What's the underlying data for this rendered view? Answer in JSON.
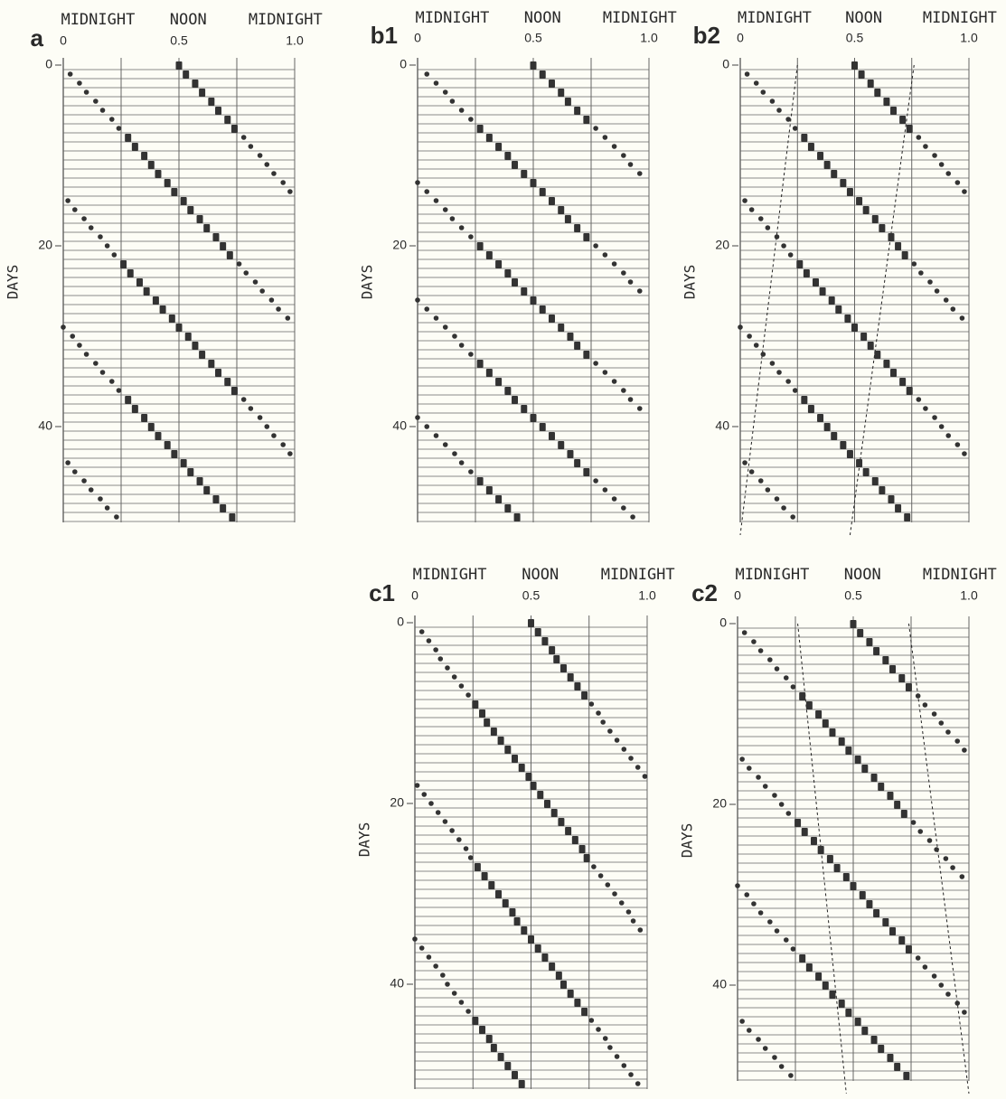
{
  "chart_data": [
    {
      "type": "scatter",
      "panel_label": "a",
      "annotations": [
        "MIDNIGHT",
        "NOON",
        "MIDNIGHT"
      ],
      "ylabel": "DAYS",
      "xlim": [
        0,
        1
      ],
      "xticks": [
        0,
        0.5,
        {
          "value": 1,
          "label": "1.0"
        }
      ],
      "xgrid": [
        0,
        0.25,
        0.5,
        0.75,
        1
      ],
      "ylim": [
        0,
        52
      ],
      "yticks": [
        0,
        20,
        40
      ],
      "days": [
        0,
        1,
        2,
        3,
        4,
        5,
        6,
        7,
        8,
        9,
        10,
        11,
        12,
        13,
        14,
        15,
        16,
        17,
        18,
        19,
        20,
        21,
        22,
        23,
        24,
        25,
        26,
        27,
        28,
        29,
        30,
        31,
        32,
        33,
        34,
        35,
        36,
        37,
        38,
        39,
        40,
        41,
        42,
        43,
        44,
        45,
        46,
        47,
        48,
        49,
        50
      ],
      "series": [
        {
          "color": "#333333",
          "x": [
            0.5,
            0.53,
            0.57,
            0.6,
            0.64,
            0.67,
            0.71,
            0.74,
            0.78,
            0.81,
            0.85,
            0.88,
            0.91,
            0.95,
            0.98,
            0.02,
            0.05,
            0.09,
            0.12,
            0.16,
            0.19,
            0.22,
            0.26,
            0.29,
            0.33,
            0.36,
            0.4,
            0.43,
            0.47,
            0.5,
            0.54,
            0.57,
            0.6,
            0.64,
            0.67,
            0.71,
            0.74,
            0.78,
            0.81,
            0.85,
            0.88,
            0.91,
            0.95,
            0.98,
            0.02,
            0.05,
            0.09,
            0.12,
            0.16,
            0.19,
            0.23
          ]
        },
        {
          "color": "#333333",
          "x": [
            null,
            0.03,
            0.07,
            0.1,
            0.14,
            0.17,
            0.21,
            0.24,
            0.28,
            0.31,
            0.35,
            0.38,
            0.41,
            0.45,
            0.48,
            0.52,
            0.55,
            0.59,
            0.62,
            0.66,
            0.69,
            0.72,
            0.76,
            0.79,
            0.83,
            0.86,
            0.9,
            0.93,
            0.97,
            0,
            0.04,
            0.07,
            0.1,
            0.14,
            0.17,
            0.21,
            0.24,
            0.28,
            0.31,
            0.35,
            0.38,
            0.41,
            0.45,
            0.48,
            0.52,
            0.55,
            0.59,
            0.62,
            0.66,
            0.69,
            0.73
          ]
        }
      ]
    },
    {
      "type": "scatter",
      "panel_label": "b1",
      "annotations": [
        "MIDNIGHT",
        "NOON",
        "MIDNIGHT"
      ],
      "ylabel": "DAYS",
      "xlim": [
        0,
        1
      ],
      "xticks": [
        0,
        0.5,
        {
          "value": 1,
          "label": "1.0"
        }
      ],
      "xgrid": [
        0,
        0.25,
        0.5,
        0.75,
        1
      ],
      "ylim": [
        0,
        52
      ],
      "yticks": [
        0,
        20,
        40
      ],
      "days": [
        0,
        1,
        2,
        3,
        4,
        5,
        6,
        7,
        8,
        9,
        10,
        11,
        12,
        13,
        14,
        15,
        16,
        17,
        18,
        19,
        20,
        21,
        22,
        23,
        24,
        25,
        26,
        27,
        28,
        29,
        30,
        31,
        32,
        33,
        34,
        35,
        36,
        37,
        38,
        39,
        40,
        41,
        42,
        43,
        44,
        45,
        46,
        47,
        48,
        49,
        50
      ],
      "series": [
        {
          "color": "#333333",
          "x": [
            0.5,
            0.54,
            0.58,
            0.62,
            0.65,
            0.69,
            0.73,
            0.77,
            0.81,
            0.85,
            0.89,
            0.92,
            0.96,
            0,
            0.04,
            0.08,
            0.12,
            0.15,
            0.19,
            0.23,
            0.27,
            0.31,
            0.35,
            0.39,
            0.42,
            0.46,
            0.5,
            0.54,
            0.58,
            0.62,
            0.66,
            0.69,
            0.73,
            0.77,
            0.81,
            0.85,
            0.89,
            0.92,
            0.96,
            0,
            0.04,
            0.08,
            0.12,
            0.16,
            0.19,
            0.23,
            0.27,
            0.31,
            0.35,
            0.39,
            0.43
          ]
        },
        {
          "color": "#333333",
          "x": [
            null,
            0.04,
            0.08,
            0.12,
            0.15,
            0.19,
            0.23,
            0.27,
            0.31,
            0.35,
            0.39,
            0.42,
            0.46,
            0.5,
            0.54,
            0.58,
            0.62,
            0.65,
            0.69,
            0.73,
            0.77,
            0.81,
            0.85,
            0.89,
            0.92,
            0.96,
            0,
            0.04,
            0.08,
            0.12,
            0.16,
            0.19,
            0.23,
            0.27,
            0.31,
            0.35,
            0.39,
            0.42,
            0.46,
            0.5,
            0.54,
            0.58,
            0.62,
            0.66,
            0.69,
            0.73,
            0.77,
            0.81,
            0.85,
            0.89,
            0.93
          ]
        }
      ]
    },
    {
      "type": "scatter",
      "panel_label": "b2",
      "annotations": [
        "MIDNIGHT",
        "NOON",
        "MIDNIGHT"
      ],
      "ylabel": "DAYS",
      "xlim": [
        0,
        1
      ],
      "xticks": [
        0,
        0.5,
        {
          "value": 1,
          "label": "1.0"
        }
      ],
      "xgrid": [
        0,
        0.25,
        0.5,
        0.75,
        1
      ],
      "ylim": [
        0,
        52
      ],
      "yticks": [
        0,
        20,
        40
      ],
      "days": [
        0,
        1,
        2,
        3,
        4,
        5,
        6,
        7,
        8,
        9,
        10,
        11,
        12,
        13,
        14,
        15,
        16,
        17,
        18,
        19,
        20,
        21,
        22,
        23,
        24,
        25,
        26,
        27,
        28,
        29,
        30,
        31,
        32,
        33,
        34,
        35,
        36,
        37,
        38,
        39,
        40,
        41,
        42,
        43,
        44,
        45,
        46,
        47,
        48,
        49,
        50
      ],
      "series": [
        {
          "color": "#333333",
          "x": [
            0.5,
            0.53,
            0.57,
            0.6,
            0.64,
            0.67,
            0.71,
            0.74,
            0.78,
            0.81,
            0.85,
            0.88,
            0.91,
            0.95,
            0.98,
            0.02,
            0.05,
            0.09,
            0.12,
            0.16,
            0.19,
            0.22,
            0.26,
            0.29,
            0.33,
            0.36,
            0.4,
            0.43,
            0.47,
            0.5,
            0.54,
            0.57,
            0.6,
            0.64,
            0.67,
            0.71,
            0.74,
            0.78,
            0.81,
            0.85,
            0.88,
            0.91,
            0.95,
            0.98,
            0.02,
            0.05,
            0.09,
            0.12,
            0.16,
            0.19,
            0.23
          ]
        },
        {
          "color": "#333333",
          "x": [
            null,
            0.03,
            0.07,
            0.1,
            0.14,
            0.17,
            0.21,
            0.24,
            0.28,
            0.31,
            0.35,
            0.38,
            0.41,
            0.45,
            0.48,
            0.52,
            0.55,
            0.59,
            0.62,
            0.66,
            0.69,
            0.72,
            0.76,
            0.79,
            0.83,
            0.86,
            0.9,
            0.93,
            0.97,
            0,
            0.04,
            0.07,
            0.1,
            0.14,
            0.17,
            0.21,
            0.24,
            0.28,
            0.31,
            0.35,
            0.38,
            0.41,
            0.45,
            0.48,
            0.52,
            0.55,
            0.59,
            0.62,
            0.66,
            0.69,
            0.73
          ]
        }
      ],
      "guides": [
        {
          "x": [
            0.25,
            0
          ],
          "y": [
            0,
            52
          ]
        },
        {
          "x": [
            0.76,
            0.48
          ],
          "y": [
            0,
            52
          ]
        }
      ]
    },
    {
      "type": "scatter",
      "panel_label": "c1",
      "annotations": [
        "MIDNIGHT",
        "NOON",
        "MIDNIGHT"
      ],
      "ylabel": "DAYS",
      "xlim": [
        0,
        1
      ],
      "xticks": [
        0,
        0.5,
        {
          "value": 1,
          "label": "1.0"
        }
      ],
      "xgrid": [
        0,
        0.25,
        0.5,
        0.75,
        1
      ],
      "ylim": [
        0,
        52
      ],
      "yticks": [
        0,
        20,
        40
      ],
      "days": [
        0,
        1,
        2,
        3,
        4,
        5,
        6,
        7,
        8,
        9,
        10,
        11,
        12,
        13,
        14,
        15,
        16,
        17,
        18,
        19,
        20,
        21,
        22,
        23,
        24,
        25,
        26,
        27,
        28,
        29,
        30,
        31,
        32,
        33,
        34,
        35,
        36,
        37,
        38,
        39,
        40,
        41,
        42,
        43,
        44,
        45,
        46,
        47,
        48,
        49,
        50,
        51
      ],
      "series": [
        {
          "color": "#333333",
          "x": [
            0.5,
            0.53,
            0.56,
            0.59,
            0.61,
            0.64,
            0.67,
            0.7,
            0.73,
            0.76,
            0.79,
            0.81,
            0.84,
            0.87,
            0.9,
            0.93,
            0.96,
            0.99,
            0.01,
            0.04,
            0.07,
            0.1,
            0.13,
            0.16,
            0.19,
            0.22,
            0.24,
            0.27,
            0.3,
            0.33,
            0.36,
            0.39,
            0.42,
            0.44,
            0.47,
            0.5,
            0.53,
            0.56,
            0.59,
            0.62,
            0.64,
            0.67,
            0.7,
            0.73,
            0.76,
            0.79,
            0.82,
            0.84,
            0.87,
            0.9,
            0.93,
            0.96
          ]
        },
        {
          "color": "#333333",
          "x": [
            null,
            0.03,
            0.06,
            0.09,
            0.11,
            0.14,
            0.17,
            0.2,
            0.23,
            0.26,
            0.29,
            0.31,
            0.34,
            0.37,
            0.4,
            0.43,
            0.46,
            0.49,
            0.51,
            0.54,
            0.57,
            0.6,
            0.63,
            0.66,
            0.69,
            0.72,
            0.74,
            0.77,
            0.8,
            0.83,
            0.86,
            0.89,
            0.92,
            0.94,
            0.97,
            0,
            0.03,
            0.06,
            0.09,
            0.12,
            0.14,
            0.17,
            0.2,
            0.23,
            0.26,
            0.29,
            0.32,
            0.34,
            0.37,
            0.4,
            0.43,
            0.46
          ]
        }
      ]
    },
    {
      "type": "scatter",
      "panel_label": "c2",
      "annotations": [
        "MIDNIGHT",
        "NOON",
        "MIDNIGHT"
      ],
      "ylabel": "DAYS",
      "xlim": [
        0,
        1
      ],
      "xticks": [
        0,
        0.5,
        {
          "value": 1,
          "label": "1.0"
        }
      ],
      "xgrid": [
        0,
        0.25,
        0.5,
        0.75,
        1
      ],
      "ylim": [
        0,
        52
      ],
      "yticks": [
        0,
        20,
        40
      ],
      "days": [
        0,
        1,
        2,
        3,
        4,
        5,
        6,
        7,
        8,
        9,
        10,
        11,
        12,
        13,
        14,
        15,
        16,
        17,
        18,
        19,
        20,
        21,
        22,
        23,
        24,
        25,
        26,
        27,
        28,
        29,
        30,
        31,
        32,
        33,
        34,
        35,
        36,
        37,
        38,
        39,
        40,
        41,
        42,
        43,
        44,
        45,
        46,
        47,
        48,
        49,
        50
      ],
      "series": [
        {
          "color": "#333333",
          "x": [
            0.5,
            0.53,
            0.57,
            0.6,
            0.64,
            0.67,
            0.71,
            0.74,
            0.78,
            0.81,
            0.85,
            0.88,
            0.91,
            0.95,
            0.98,
            0.02,
            0.05,
            0.09,
            0.12,
            0.16,
            0.19,
            0.22,
            0.26,
            0.29,
            0.33,
            0.36,
            0.4,
            0.43,
            0.47,
            0.5,
            0.54,
            0.57,
            0.6,
            0.64,
            0.67,
            0.71,
            0.74,
            0.78,
            0.81,
            0.85,
            0.88,
            0.91,
            0.95,
            0.98,
            0.02,
            0.05,
            0.09,
            0.12,
            0.16,
            0.19,
            0.23
          ]
        },
        {
          "color": "#333333",
          "x": [
            null,
            0.03,
            0.07,
            0.1,
            0.14,
            0.17,
            0.21,
            0.24,
            0.28,
            0.31,
            0.35,
            0.38,
            0.41,
            0.45,
            0.48,
            0.52,
            0.55,
            0.59,
            0.62,
            0.66,
            0.69,
            0.72,
            0.76,
            0.79,
            0.83,
            0.86,
            0.9,
            0.93,
            0.97,
            0,
            0.04,
            0.07,
            0.1,
            0.14,
            0.17,
            0.21,
            0.24,
            0.28,
            0.31,
            0.35,
            0.38,
            0.41,
            0.45,
            0.48,
            0.52,
            0.55,
            0.59,
            0.62,
            0.66,
            0.69,
            0.73
          ]
        }
      ],
      "guides": [
        {
          "x": [
            0.26,
            0.47
          ],
          "y": [
            0,
            52
          ]
        },
        {
          "x": [
            0.74,
            1
          ],
          "y": [
            0,
            52
          ]
        }
      ]
    }
  ]
}
